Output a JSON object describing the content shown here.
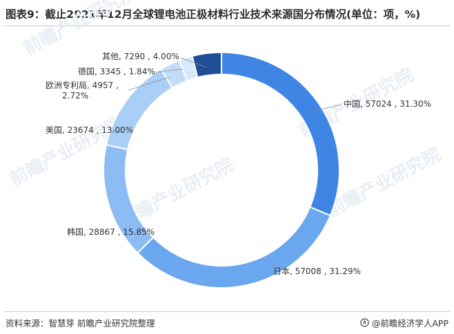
{
  "title": "图表9：截止2021年12月全球锂电池正极材料行业技术来源国分布情况(单位：项，%)",
  "footer": {
    "source": "资料来源：智慧芽 前瞻产业研究院整理",
    "brand": "@前瞻经济学人APP"
  },
  "watermark": {
    "text": "前瞻产业研究院"
  },
  "chart_data": {
    "type": "pie",
    "title": "图表9：截止2021年12月全球锂电池正极材料行业技术来源国分布情况(单位：项，%)",
    "unit": "项，%",
    "legend": "none",
    "slices": [
      {
        "name": "中国",
        "value": 57024,
        "percent": 31.3,
        "label": "中国, 57024 , 31.30%",
        "color": "#3f86e4"
      },
      {
        "name": "日本",
        "value": 57008,
        "percent": 31.29,
        "label": "日本, 57008 , 31.29%",
        "color": "#6aa7ee"
      },
      {
        "name": "韩国",
        "value": 28867,
        "percent": 15.85,
        "label": "韩国, 28867 , 15.85%",
        "color": "#8bbcf3"
      },
      {
        "name": "美国",
        "value": 23674,
        "percent": 13.0,
        "label": "美国, 23674 , 13.00%",
        "color": "#a9cff7"
      },
      {
        "name": "欧洲专利局",
        "value": 4957,
        "percent": 2.72,
        "label": "欧洲专利局, 4957 ,\n2.72%",
        "color": "#c2dcf9"
      },
      {
        "name": "德国",
        "value": 3345,
        "percent": 1.84,
        "label": "德国, 3345 , 1.84%",
        "color": "#d6e8fb"
      },
      {
        "name": "其他",
        "value": 7290,
        "percent": 4.0,
        "label": "其他, 7290 , 4.00%",
        "color": "#1f4e96"
      }
    ]
  }
}
